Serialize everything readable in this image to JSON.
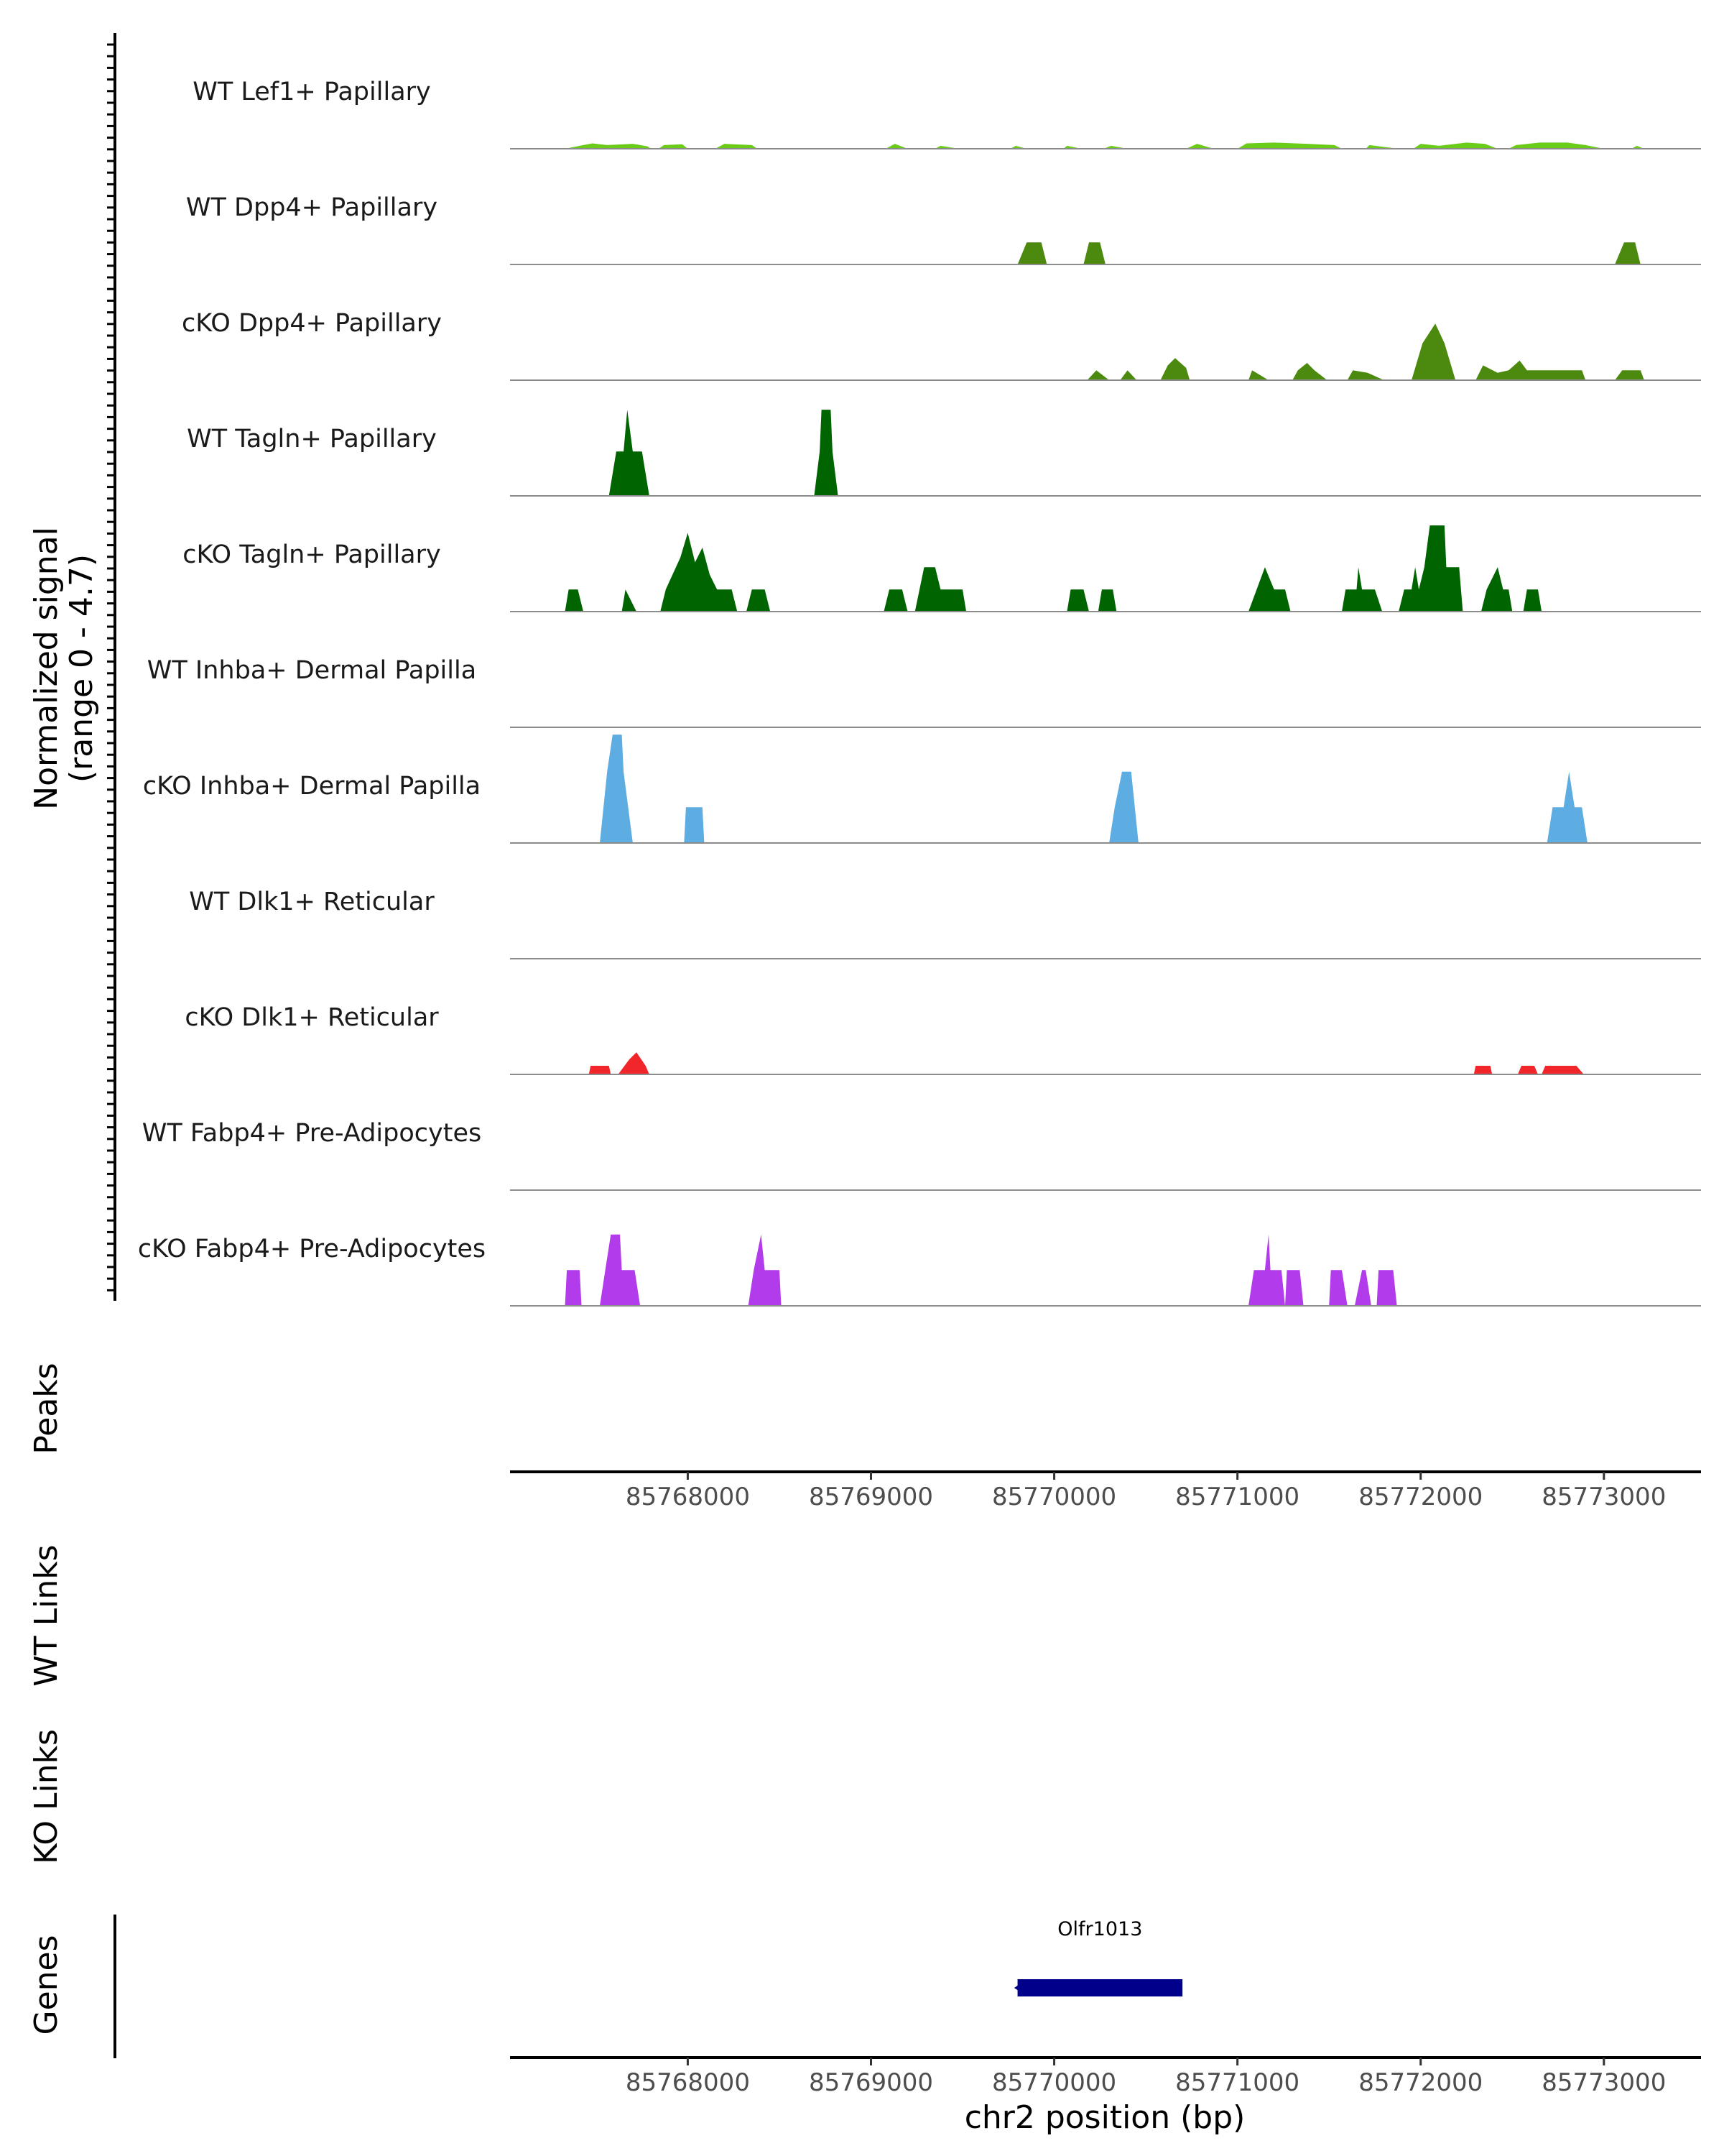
{
  "chart_data": {
    "type": "area",
    "title": "",
    "region": "chr2",
    "xlabel": "chr2 position (bp)",
    "ylabel": "Normalized signal",
    "ylabel_range": "(range 0 - 4.7)",
    "xlim": [
      85767030,
      85773530
    ],
    "ylim": [
      0,
      4.7
    ],
    "x_ticks": [
      85768000,
      85769000,
      85770000,
      85771000,
      85772000,
      85773000
    ],
    "x_tick_labels": [
      "85768000",
      "85769000",
      "85770000",
      "85771000",
      "85772000",
      "85773000"
    ],
    "series": [
      {
        "name": "WT Lef1+ Papillary",
        "color": "#6ACC19",
        "points": [
          [
            85767330,
            0
          ],
          [
            85767430,
            0.15
          ],
          [
            85767480,
            0.22
          ],
          [
            85767560,
            0.15
          ],
          [
            85767700,
            0.2
          ],
          [
            85767780,
            0.1
          ],
          [
            85767800,
            0
          ],
          [
            85767840,
            0
          ],
          [
            85767870,
            0.15
          ],
          [
            85767970,
            0.18
          ],
          [
            85768000,
            0
          ],
          [
            85768150,
            0
          ],
          [
            85768200,
            0.2
          ],
          [
            85768350,
            0.15
          ],
          [
            85768380,
            0
          ],
          [
            85769080,
            0
          ],
          [
            85769130,
            0.2
          ],
          [
            85769200,
            0
          ],
          [
            85769350,
            0
          ],
          [
            85769380,
            0.12
          ],
          [
            85769480,
            0
          ],
          [
            85769760,
            0
          ],
          [
            85769790,
            0.12
          ],
          [
            85769850,
            0
          ],
          [
            85770050,
            0
          ],
          [
            85770070,
            0.12
          ],
          [
            85770150,
            0
          ],
          [
            85770270,
            0
          ],
          [
            85770310,
            0.12
          ],
          [
            85770400,
            0
          ],
          [
            85770720,
            0
          ],
          [
            85770780,
            0.2
          ],
          [
            85770870,
            0
          ],
          [
            85771000,
            0
          ],
          [
            85771050,
            0.22
          ],
          [
            85771200,
            0.25
          ],
          [
            85771380,
            0.2
          ],
          [
            85771530,
            0.15
          ],
          [
            85771570,
            0
          ],
          [
            85771700,
            0
          ],
          [
            85771720,
            0.15
          ],
          [
            85771880,
            0
          ],
          [
            85771960,
            0
          ],
          [
            85772000,
            0.2
          ],
          [
            85772100,
            0.12
          ],
          [
            85772250,
            0.25
          ],
          [
            85772350,
            0.2
          ],
          [
            85772420,
            0
          ],
          [
            85772480,
            0
          ],
          [
            85772520,
            0.15
          ],
          [
            85772650,
            0.25
          ],
          [
            85772800,
            0.25
          ],
          [
            85772900,
            0.15
          ],
          [
            85773000,
            0
          ],
          [
            85773150,
            0
          ],
          [
            85773180,
            0.12
          ],
          [
            85773220,
            0
          ]
        ]
      },
      {
        "name": "WT Dpp4+ Papillary",
        "color": "#4B8A0E",
        "points": [
          [
            85769800,
            0
          ],
          [
            85769850,
            0.9
          ],
          [
            85769930,
            0.9
          ],
          [
            85769960,
            0
          ],
          [
            85770160,
            0
          ],
          [
            85770190,
            0.9
          ],
          [
            85770250,
            0.9
          ],
          [
            85770280,
            0
          ],
          [
            85773060,
            0
          ],
          [
            85773110,
            0.9
          ],
          [
            85773170,
            0.9
          ],
          [
            85773200,
            0
          ]
        ]
      },
      {
        "name": "cKO Dpp4+ Papillary",
        "color": "#4B8A0E",
        "points": [
          [
            85770180,
            0
          ],
          [
            85770230,
            0.4
          ],
          [
            85770300,
            0
          ],
          [
            85770360,
            0
          ],
          [
            85770400,
            0.4
          ],
          [
            85770450,
            0
          ],
          [
            85770580,
            0
          ],
          [
            85770620,
            0.6
          ],
          [
            85770660,
            0.9
          ],
          [
            85770720,
            0.5
          ],
          [
            85770740,
            0
          ],
          [
            85771060,
            0
          ],
          [
            85771080,
            0.4
          ],
          [
            85771170,
            0
          ],
          [
            85771300,
            0
          ],
          [
            85771330,
            0.4
          ],
          [
            85771380,
            0.7
          ],
          [
            85771420,
            0.4
          ],
          [
            85771490,
            0
          ],
          [
            85771600,
            0
          ],
          [
            85771630,
            0.4
          ],
          [
            85771710,
            0.3
          ],
          [
            85771800,
            0
          ],
          [
            85771950,
            0
          ],
          [
            85772010,
            1.5
          ],
          [
            85772080,
            2.3
          ],
          [
            85772130,
            1.5
          ],
          [
            85772170,
            0.5
          ],
          [
            85772190,
            0
          ],
          [
            85772300,
            0
          ],
          [
            85772340,
            0.6
          ],
          [
            85772420,
            0.3
          ],
          [
            85772480,
            0.4
          ],
          [
            85772540,
            0.8
          ],
          [
            85772580,
            0.4
          ],
          [
            85772650,
            0.4
          ],
          [
            85772880,
            0.4
          ],
          [
            85772900,
            0
          ],
          [
            85773060,
            0
          ],
          [
            85773100,
            0.4
          ],
          [
            85773200,
            0.4
          ],
          [
            85773220,
            0
          ]
        ]
      },
      {
        "name": "WT Tagln+ Papillary",
        "color": "#006400",
        "points": [
          [
            85767570,
            0
          ],
          [
            85767610,
            1.8
          ],
          [
            85767650,
            1.8
          ],
          [
            85767670,
            3.5
          ],
          [
            85767700,
            1.8
          ],
          [
            85767750,
            1.8
          ],
          [
            85767790,
            0
          ],
          [
            85768690,
            0
          ],
          [
            85768720,
            1.8
          ],
          [
            85768730,
            3.5
          ],
          [
            85768780,
            3.5
          ],
          [
            85768790,
            1.8
          ],
          [
            85768820,
            0
          ]
        ]
      },
      {
        "name": "cKO Tagln+ Papillary",
        "color": "#006400",
        "points": [
          [
            85767330,
            0
          ],
          [
            85767350,
            0.9
          ],
          [
            85767400,
            0.9
          ],
          [
            85767430,
            0
          ],
          [
            85767640,
            0
          ],
          [
            85767660,
            0.9
          ],
          [
            85767720,
            0
          ],
          [
            85767850,
            0
          ],
          [
            85767880,
            0.9
          ],
          [
            85767960,
            2.2
          ],
          [
            85768000,
            3.2
          ],
          [
            85768040,
            2.0
          ],
          [
            85768080,
            2.6
          ],
          [
            85768120,
            1.5
          ],
          [
            85768160,
            0.9
          ],
          [
            85768240,
            0.9
          ],
          [
            85768270,
            0
          ],
          [
            85768320,
            0
          ],
          [
            85768350,
            0.9
          ],
          [
            85768420,
            0.9
          ],
          [
            85768450,
            0
          ],
          [
            85769070,
            0
          ],
          [
            85769100,
            0.9
          ],
          [
            85769170,
            0.9
          ],
          [
            85769200,
            0
          ],
          [
            85769240,
            0
          ],
          [
            85769290,
            1.8
          ],
          [
            85769350,
            1.8
          ],
          [
            85769380,
            0.9
          ],
          [
            85769500,
            0.9
          ],
          [
            85769520,
            0
          ],
          [
            85770070,
            0
          ],
          [
            85770090,
            0.9
          ],
          [
            85770160,
            0.9
          ],
          [
            85770190,
            0
          ],
          [
            85770240,
            0
          ],
          [
            85770260,
            0.9
          ],
          [
            85770320,
            0.9
          ],
          [
            85770340,
            0
          ],
          [
            85771060,
            0
          ],
          [
            85771150,
            1.8
          ],
          [
            85771200,
            0.9
          ],
          [
            85771260,
            0.9
          ],
          [
            85771290,
            0
          ],
          [
            85771570,
            0
          ],
          [
            85771590,
            0.9
          ],
          [
            85771650,
            0.9
          ],
          [
            85771660,
            1.8
          ],
          [
            85771680,
            0.9
          ],
          [
            85771750,
            0.9
          ],
          [
            85771790,
            0
          ],
          [
            85771880,
            0
          ],
          [
            85771910,
            0.9
          ],
          [
            85771950,
            0.9
          ],
          [
            85771970,
            1.8
          ],
          [
            85771990,
            0.9
          ],
          [
            85772020,
            1.8
          ],
          [
            85772050,
            3.5
          ],
          [
            85772130,
            3.5
          ],
          [
            85772140,
            1.8
          ],
          [
            85772210,
            1.8
          ],
          [
            85772230,
            0
          ],
          [
            85772330,
            0
          ],
          [
            85772360,
            0.9
          ],
          [
            85772420,
            1.8
          ],
          [
            85772450,
            0.9
          ],
          [
            85772480,
            0.9
          ],
          [
            85772500,
            0
          ],
          [
            85772560,
            0
          ],
          [
            85772580,
            0.9
          ],
          [
            85772640,
            0.9
          ],
          [
            85772660,
            0
          ]
        ]
      },
      {
        "name": "WT Inhba+ Dermal Papilla",
        "color": "#5DADE2",
        "points": []
      },
      {
        "name": "cKO Inhba+ Dermal Papilla",
        "color": "#5DADE2",
        "points": [
          [
            85767520,
            0
          ],
          [
            85767560,
            2.9
          ],
          [
            85767590,
            4.4
          ],
          [
            85767640,
            4.4
          ],
          [
            85767650,
            2.9
          ],
          [
            85767700,
            0
          ],
          [
            85767980,
            0
          ],
          [
            85767990,
            1.45
          ],
          [
            85768080,
            1.45
          ],
          [
            85768090,
            0
          ],
          [
            85770300,
            0
          ],
          [
            85770330,
            1.45
          ],
          [
            85770370,
            2.9
          ],
          [
            85770420,
            2.9
          ],
          [
            85770440,
            1.45
          ],
          [
            85770460,
            0
          ],
          [
            85772690,
            0
          ],
          [
            85772720,
            1.45
          ],
          [
            85772780,
            1.45
          ],
          [
            85772810,
            2.9
          ],
          [
            85772840,
            1.45
          ],
          [
            85772880,
            1.45
          ],
          [
            85772910,
            0
          ]
        ]
      },
      {
        "name": "WT Dlk1+ Reticular",
        "color": "#F0262A",
        "points": []
      },
      {
        "name": "cKO Dlk1+ Reticular",
        "color": "#F0262A",
        "points": [
          [
            85767460,
            0
          ],
          [
            85767470,
            0.35
          ],
          [
            85767570,
            0.35
          ],
          [
            85767580,
            0
          ],
          [
            85767620,
            0
          ],
          [
            85767680,
            0.6
          ],
          [
            85767720,
            0.9
          ],
          [
            85767770,
            0.35
          ],
          [
            85767790,
            0
          ],
          [
            85772290,
            0
          ],
          [
            85772300,
            0.35
          ],
          [
            85772380,
            0.35
          ],
          [
            85772390,
            0
          ],
          [
            85772530,
            0
          ],
          [
            85772550,
            0.35
          ],
          [
            85772620,
            0.35
          ],
          [
            85772640,
            0
          ],
          [
            85772660,
            0
          ],
          [
            85772680,
            0.35
          ],
          [
            85772800,
            0.35
          ],
          [
            85772850,
            0.35
          ],
          [
            85772890,
            0
          ]
        ]
      },
      {
        "name": "WT Fabp4+ Pre-Adipocytes",
        "color": "#B23BEB",
        "points": []
      },
      {
        "name": "cKO Fabp4+ Pre-Adipocytes",
        "color": "#B23BEB",
        "points": [
          [
            85767330,
            0
          ],
          [
            85767340,
            1.45
          ],
          [
            85767410,
            1.45
          ],
          [
            85767420,
            0
          ],
          [
            85767520,
            0
          ],
          [
            85767550,
            1.45
          ],
          [
            85767580,
            2.9
          ],
          [
            85767630,
            2.9
          ],
          [
            85767640,
            1.45
          ],
          [
            85767710,
            1.45
          ],
          [
            85767740,
            0
          ],
          [
            85768330,
            0
          ],
          [
            85768360,
            1.45
          ],
          [
            85768400,
            2.9
          ],
          [
            85768420,
            1.45
          ],
          [
            85768500,
            1.45
          ],
          [
            85768510,
            0
          ],
          [
            85771060,
            0
          ],
          [
            85771090,
            1.45
          ],
          [
            85771150,
            1.45
          ],
          [
            85771170,
            2.9
          ],
          [
            85771180,
            1.45
          ],
          [
            85771240,
            1.45
          ],
          [
            85771260,
            0
          ],
          [
            85771270,
            1.45
          ],
          [
            85771340,
            1.45
          ],
          [
            85771360,
            0
          ],
          [
            85771500,
            0
          ],
          [
            85771510,
            1.45
          ],
          [
            85771570,
            1.45
          ],
          [
            85771600,
            0
          ],
          [
            85771640,
            0
          ],
          [
            85771680,
            1.45
          ],
          [
            85771700,
            1.45
          ],
          [
            85771730,
            0
          ],
          [
            85771760,
            0
          ],
          [
            85771770,
            1.45
          ],
          [
            85771850,
            1.45
          ],
          [
            85771870,
            0
          ]
        ]
      }
    ],
    "panels": {
      "peaks": "Peaks",
      "wt_links": "WT Links",
      "ko_links": "KO Links",
      "genes": "Genes"
    },
    "genes": [
      {
        "name": "Olfr1013",
        "start": 85769800,
        "end": 85770700,
        "strand": "-",
        "color": "#00008B"
      }
    ]
  }
}
